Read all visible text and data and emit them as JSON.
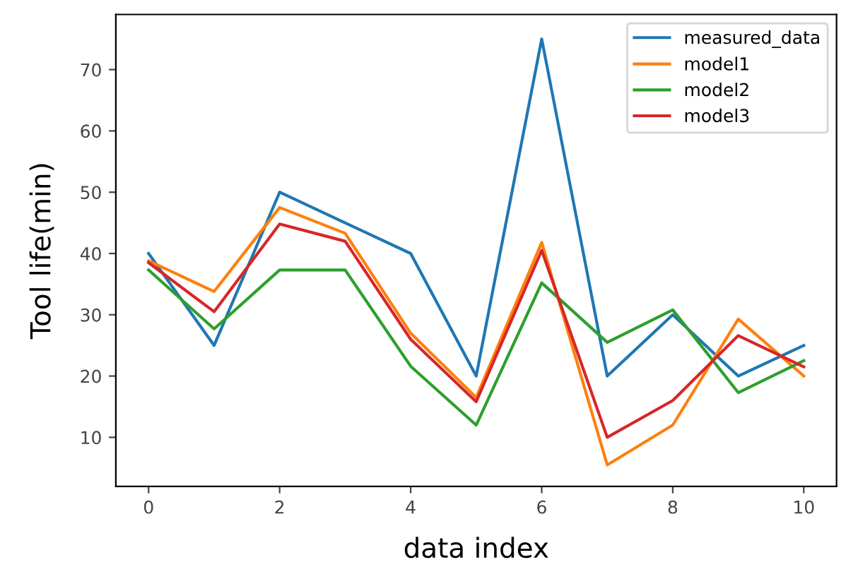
{
  "chart_data": {
    "type": "line",
    "xlabel": "data index",
    "ylabel": "Tool life(min)",
    "x": [
      0,
      1,
      2,
      3,
      4,
      5,
      6,
      7,
      8,
      9,
      10
    ],
    "series": [
      {
        "name": "measured_data",
        "color": "#1f77b4",
        "values": [
          40,
          25,
          50,
          45,
          40,
          20,
          75,
          20,
          30,
          20,
          25
        ]
      },
      {
        "name": "model1",
        "color": "#ff7f0e",
        "values": [
          38.8,
          33.8,
          47.5,
          43.3,
          27,
          16.5,
          41.8,
          5.5,
          12,
          29.3,
          20
        ]
      },
      {
        "name": "model2",
        "color": "#2ca02c",
        "values": [
          37.3,
          27.7,
          37.3,
          37.3,
          21.6,
          12,
          35.2,
          25.5,
          30.8,
          17.3,
          22.5
        ]
      },
      {
        "name": "model3",
        "color": "#d62728",
        "values": [
          38.5,
          30.5,
          44.8,
          42,
          26,
          15.8,
          40.5,
          10,
          16,
          26.6,
          21.5
        ]
      }
    ],
    "xlim": [
      -0.5,
      10.5
    ],
    "xticks": [
      0,
      2,
      4,
      6,
      8,
      10
    ],
    "ylim": [
      2,
      79
    ],
    "yticks": [
      10,
      20,
      30,
      40,
      50,
      60,
      70
    ],
    "grid": false,
    "legend": "top right"
  }
}
